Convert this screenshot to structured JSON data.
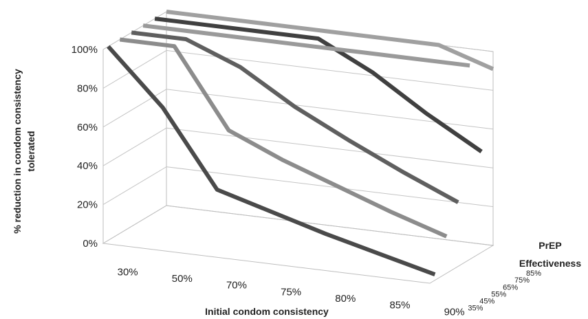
{
  "chart_data": {
    "type": "line",
    "style": "3d-line",
    "title": "",
    "xlabel": "Initial condom consistency",
    "ylabel": "% reduction in condom consistency tolerated",
    "zlabel": "PrEP Effectiveness",
    "categories": [
      "30%",
      "50%",
      "70%",
      "75%",
      "80%",
      "85%",
      "90%"
    ],
    "ylim": [
      0,
      100
    ],
    "yticks": [
      "0%",
      "20%",
      "40%",
      "60%",
      "80%",
      "100%"
    ],
    "grid": true,
    "legend": "none",
    "series": [
      {
        "name": "35%",
        "color": "#4a4a4a",
        "values": [
          100,
          72,
          33,
          25,
          17,
          10,
          3
        ]
      },
      {
        "name": "45%",
        "color": "#8c8c8c",
        "values": [
          100,
          100,
          60,
          48,
          38,
          28,
          19
        ]
      },
      {
        "name": "55%",
        "color": "#5f5f5f",
        "values": [
          100,
          100,
          89,
          72,
          58,
          45,
          33
        ]
      },
      {
        "name": "65%",
        "color": "#9a9a9a",
        "values": [
          100,
          100,
          100,
          100,
          100,
          100,
          100
        ]
      },
      {
        "name": "75%",
        "color": "#404040",
        "values": [
          100,
          100,
          100,
          100,
          86,
          68,
          52
        ]
      },
      {
        "name": "85%",
        "color": "#a0a0a0",
        "values": [
          100,
          100,
          100,
          100,
          100,
          100,
          91
        ]
      }
    ]
  }
}
